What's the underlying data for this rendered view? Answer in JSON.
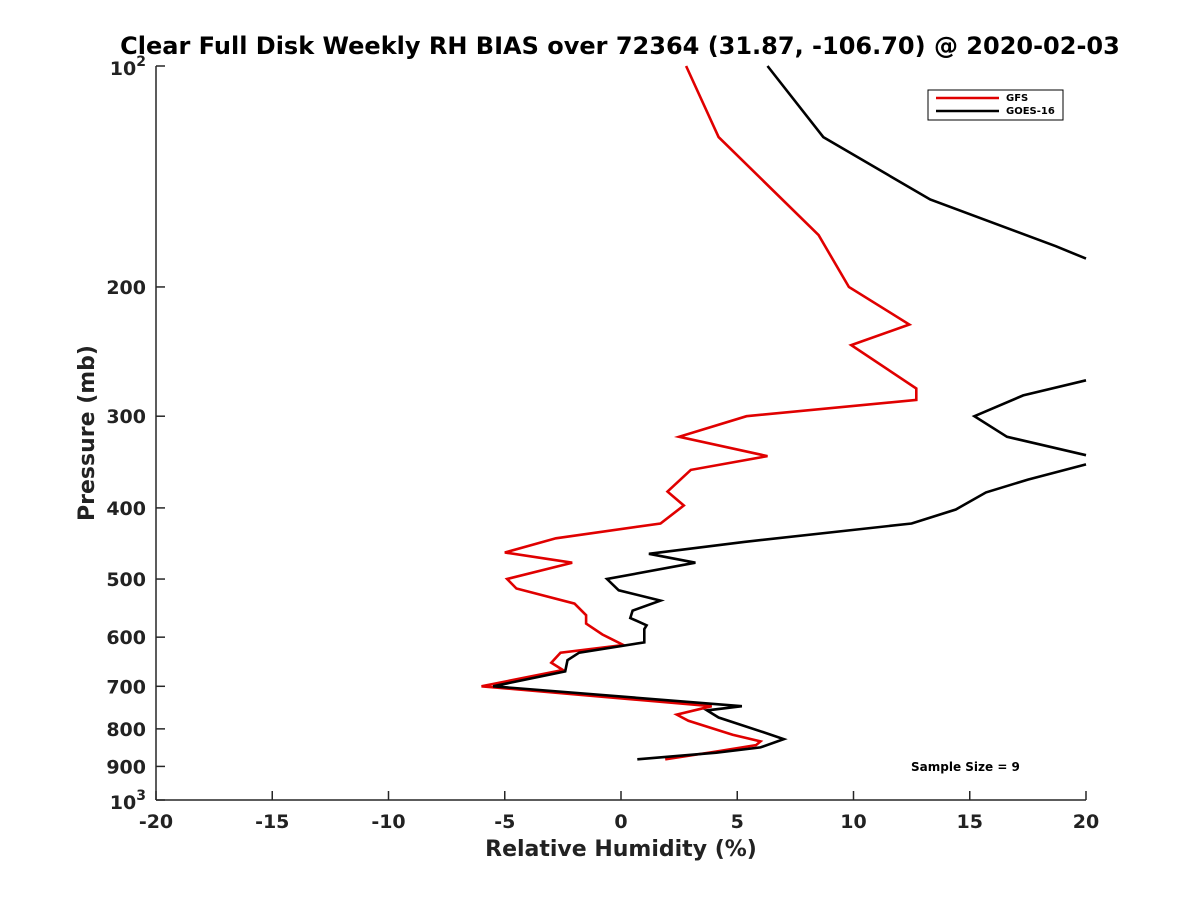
{
  "chart_data": {
    "type": "line",
    "title": "Clear Full Disk Weekly RH BIAS over 72364 (31.87, -106.70) @ 2020-02-03",
    "xlabel": "Relative Humidity (%)",
    "ylabel": "Pressure (mb)",
    "xlim": [
      -20,
      20
    ],
    "ylim": [
      100,
      1000
    ],
    "y_scale": "log",
    "y_reversed": true,
    "x_ticks": [
      "-20",
      "-15",
      "-10",
      "-5",
      "0",
      "5",
      "10",
      "15",
      "20"
    ],
    "y_ticks": [
      {
        "value": 100,
        "base": "10",
        "exp": "2"
      },
      {
        "value": 200,
        "label": "200"
      },
      {
        "value": 300,
        "label": "300"
      },
      {
        "value": 400,
        "label": "400"
      },
      {
        "value": 500,
        "label": "500"
      },
      {
        "value": 600,
        "label": "600"
      },
      {
        "value": 700,
        "label": "700"
      },
      {
        "value": 800,
        "label": "800"
      },
      {
        "value": 900,
        "label": "900"
      },
      {
        "value": 1000,
        "base": "10",
        "exp": "3"
      }
    ],
    "legend_position": "top-right",
    "annotation": "Sample Size = 9",
    "series": [
      {
        "name": "GFS",
        "color": "#e00000",
        "points": [
          [
            2.8,
            100
          ],
          [
            4.2,
            125
          ],
          [
            8.5,
            170
          ],
          [
            9.8,
            200
          ],
          [
            12.4,
            225
          ],
          [
            9.9,
            240
          ],
          [
            12.7,
            275
          ],
          [
            12.7,
            285
          ],
          [
            5.4,
            300
          ],
          [
            2.5,
            320
          ],
          [
            6.3,
            340
          ],
          [
            3.0,
            355
          ],
          [
            2.0,
            380
          ],
          [
            2.7,
            397
          ],
          [
            1.7,
            420
          ],
          [
            -2.8,
            440
          ],
          [
            -5.0,
            460
          ],
          [
            -2.1,
            475
          ],
          [
            -4.9,
            500
          ],
          [
            -4.5,
            515
          ],
          [
            -2.0,
            540
          ],
          [
            -1.5,
            560
          ],
          [
            -1.5,
            575
          ],
          [
            -0.8,
            595
          ],
          [
            0.1,
            615
          ],
          [
            -2.6,
            630
          ],
          [
            -3.0,
            650
          ],
          [
            -2.5,
            665
          ],
          [
            -6.0,
            700
          ],
          [
            3.9,
            745
          ],
          [
            2.4,
            765
          ],
          [
            2.9,
            780
          ],
          [
            4.8,
            815
          ],
          [
            6.0,
            832
          ],
          [
            5.8,
            842
          ],
          [
            4.0,
            860
          ],
          [
            1.9,
            880
          ]
        ]
      },
      {
        "name": "GOES-16",
        "color": "#000000",
        "points": [
          [
            6.3,
            100
          ],
          [
            8.7,
            125
          ],
          [
            13.3,
            152
          ],
          [
            18.7,
            176
          ],
          [
            20,
            183
          ],
          [
            null,
            null
          ],
          [
            20,
            268
          ],
          [
            17.3,
            281
          ],
          [
            15.2,
            300
          ],
          [
            16.6,
            320
          ],
          [
            20,
            339
          ],
          [
            null,
            null
          ],
          [
            20,
            349
          ],
          [
            17.5,
            366
          ],
          [
            15.7,
            381
          ],
          [
            14.4,
            402
          ],
          [
            12.5,
            420
          ],
          [
            5.3,
            445
          ],
          [
            1.2,
            462
          ],
          [
            3.2,
            475
          ],
          [
            -0.6,
            500
          ],
          [
            -0.1,
            518
          ],
          [
            1.7,
            535
          ],
          [
            0.5,
            552
          ],
          [
            0.4,
            565
          ],
          [
            1.1,
            578
          ],
          [
            1.0,
            585
          ],
          [
            1.0,
            610
          ],
          [
            -1.8,
            630
          ],
          [
            -2.3,
            645
          ],
          [
            -2.4,
            668
          ],
          [
            -5.5,
            700
          ],
          [
            5.2,
            745
          ],
          [
            3.7,
            755
          ],
          [
            4.2,
            772
          ],
          [
            6.1,
            808
          ],
          [
            7.0,
            826
          ],
          [
            6.0,
            848
          ],
          [
            4.1,
            862
          ],
          [
            0.7,
            880
          ]
        ]
      }
    ]
  }
}
